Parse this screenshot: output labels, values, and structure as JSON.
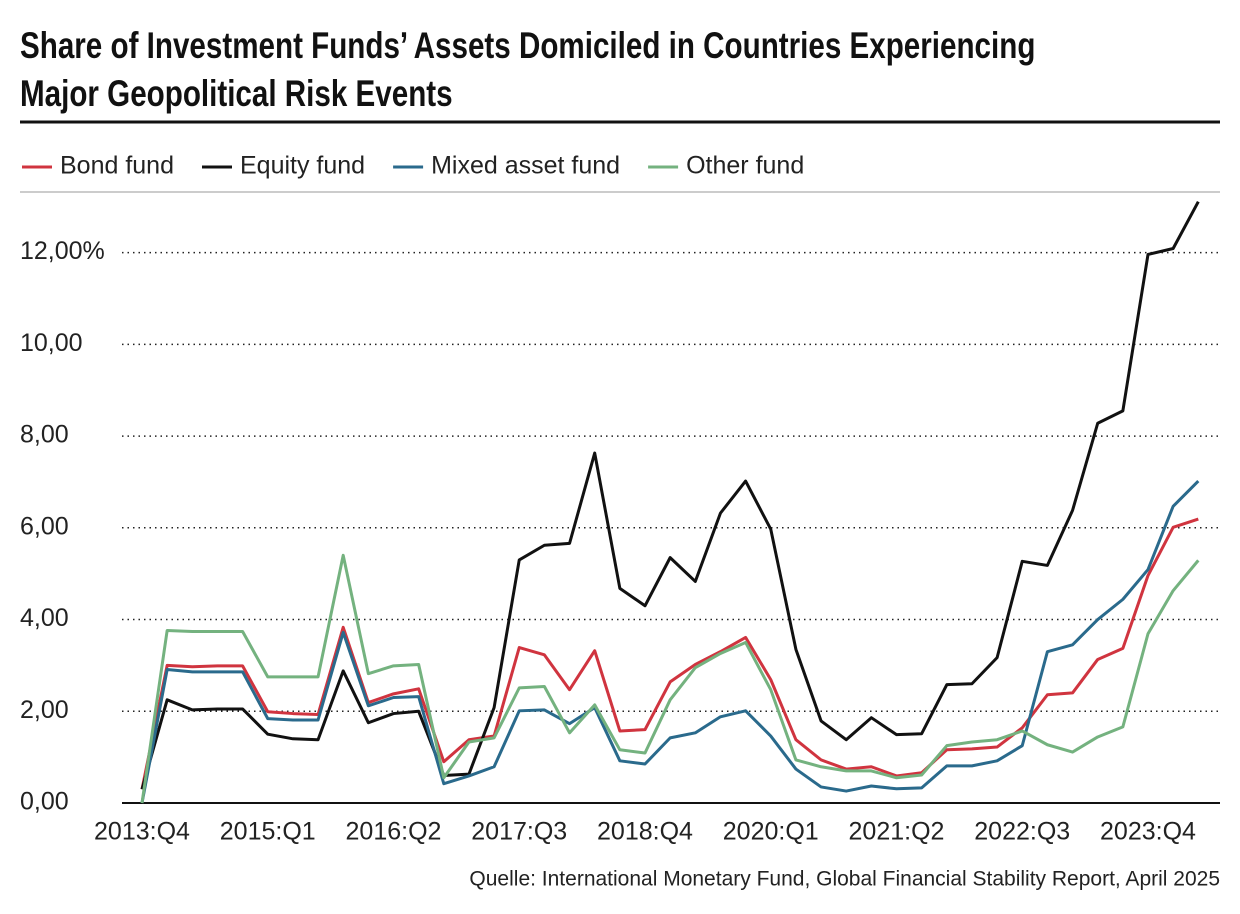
{
  "chart_data": {
    "type": "line",
    "title": "Share of Investment Funds’ Assets Domiciled in Countries Experiencing Major Geopolitical Risk Events",
    "source": "Quelle: International Monetary Fund, Global Financial Stability Report, April 2025",
    "categories": [
      "2013:Q4",
      null,
      null,
      null,
      null,
      "2015:Q1",
      null,
      null,
      null,
      null,
      "2016:Q2",
      null,
      null,
      null,
      null,
      "2017:Q3",
      null,
      null,
      null,
      null,
      "2018:Q4",
      null,
      null,
      null,
      null,
      "2020:Q1",
      null,
      null,
      null,
      null,
      "2021:Q2",
      null,
      null,
      null,
      null,
      "2022:Q3",
      null,
      null,
      null,
      null,
      "2023:Q4",
      null,
      null
    ],
    "series": [
      {
        "name": "Bond fund",
        "color": "#d0343f",
        "values": [
          0.3,
          3.0,
          2.97,
          2.99,
          2.99,
          1.99,
          1.95,
          1.93,
          3.83,
          2.19,
          2.38,
          2.49,
          0.9,
          1.38,
          1.46,
          3.39,
          3.23,
          2.47,
          3.32,
          1.57,
          1.6,
          2.64,
          3.02,
          3.3,
          3.61,
          2.69,
          1.38,
          0.94,
          0.74,
          0.79,
          0.59,
          0.66,
          1.16,
          1.18,
          1.22,
          1.64,
          2.36,
          2.4,
          3.13,
          3.37,
          4.96,
          6.01,
          6.19
        ]
      },
      {
        "name": "Equity fund",
        "color": "#111111",
        "values": [
          0.3,
          2.25,
          2.03,
          2.05,
          2.05,
          1.5,
          1.4,
          1.38,
          2.88,
          1.75,
          1.95,
          2.0,
          0.6,
          0.63,
          2.08,
          5.3,
          5.62,
          5.66,
          7.63,
          4.68,
          4.3,
          5.35,
          4.83,
          6.32,
          7.02,
          5.97,
          3.35,
          1.79,
          1.38,
          1.86,
          1.49,
          1.51,
          2.58,
          2.6,
          3.17,
          5.27,
          5.18,
          6.38,
          8.28,
          8.55,
          11.96,
          12.09,
          13.11
        ]
      },
      {
        "name": "Mixed asset fund",
        "color": "#2a6a8c",
        "values": [
          0.0,
          2.91,
          2.86,
          2.86,
          2.86,
          1.84,
          1.81,
          1.81,
          3.72,
          2.12,
          2.3,
          2.32,
          0.42,
          0.59,
          0.79,
          2.01,
          2.03,
          1.73,
          2.08,
          0.92,
          0.85,
          1.42,
          1.53,
          1.88,
          2.01,
          1.46,
          0.74,
          0.35,
          0.26,
          0.37,
          0.31,
          0.33,
          0.81,
          0.81,
          0.92,
          1.25,
          3.3,
          3.45,
          4.0,
          4.44,
          5.09,
          6.47,
          7.02
        ]
      },
      {
        "name": "Other fund",
        "color": "#74b27f",
        "values": [
          0.0,
          3.76,
          3.74,
          3.74,
          3.74,
          2.75,
          2.75,
          2.75,
          5.4,
          2.82,
          2.99,
          3.02,
          0.55,
          1.33,
          1.42,
          2.51,
          2.54,
          1.53,
          2.14,
          1.16,
          1.09,
          2.25,
          2.95,
          3.26,
          3.5,
          2.47,
          0.94,
          0.79,
          0.7,
          0.7,
          0.55,
          0.61,
          1.25,
          1.33,
          1.38,
          1.57,
          1.27,
          1.11,
          1.44,
          1.66,
          3.69,
          4.63,
          5.29
        ]
      }
    ],
    "ylim": [
      0,
      13.3
    ],
    "yticks": [
      {
        "value": 0,
        "label": "0,00"
      },
      {
        "value": 2,
        "label": "2,00"
      },
      {
        "value": 4,
        "label": "4,00"
      },
      {
        "value": 6,
        "label": "6,00"
      },
      {
        "value": 8,
        "label": "8,00"
      },
      {
        "value": 10,
        "label": "10,00"
      },
      {
        "value": 12,
        "label": "12,00%"
      }
    ],
    "grid": true
  }
}
